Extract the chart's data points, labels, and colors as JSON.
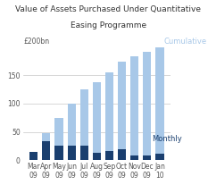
{
  "title_line1": "Value of Assets Purchased Under Quantitative",
  "title_line2": "Easing Programme",
  "categories": [
    "Mar\n09",
    "Apr\n09",
    "May\n09",
    "Jun\n09",
    "Jul\n09",
    "Aug\n09",
    "Sep\n09",
    "Oct\n09",
    "Nov\n09",
    "Dec\n09",
    "Jan\n10"
  ],
  "monthly": [
    15,
    33,
    25,
    25,
    25,
    13,
    16,
    20,
    9,
    8,
    11
  ],
  "cumulative": [
    15,
    48,
    75,
    100,
    125,
    138,
    156,
    175,
    184,
    191,
    200
  ],
  "monthly_color": "#1a3f6f",
  "cumulative_color": "#a8c8e8",
  "ylabel": "£200bn",
  "yticks": [
    0,
    50,
    100,
    150
  ],
  "ylim": [
    0,
    215
  ],
  "label_cumulative": "Cumulative",
  "label_monthly": "Monthly",
  "bg_color": "#ffffff",
  "grid_color": "#c8c8c8",
  "title_fontsize": 6.5,
  "tick_fontsize": 5.5,
  "label_fontsize": 6.0
}
